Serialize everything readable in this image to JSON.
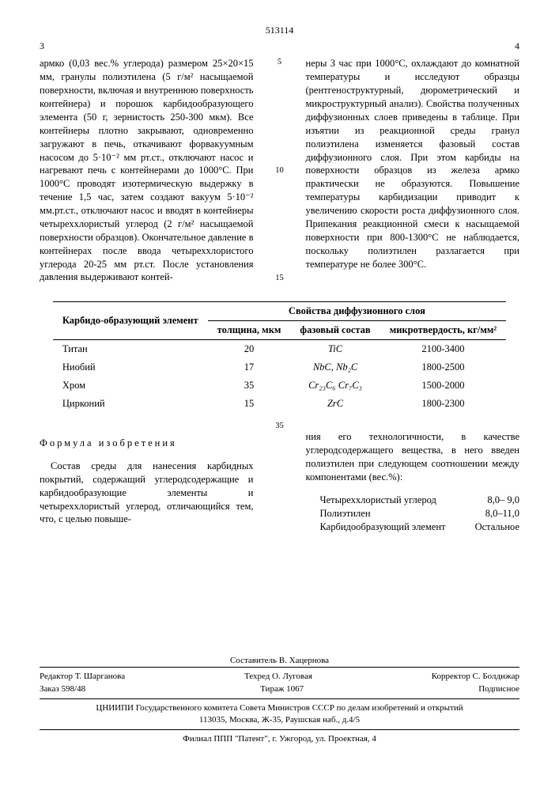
{
  "doc_number": "513114",
  "col_left_num": "3",
  "col_right_num": "4",
  "line_nums": [
    "5",
    "10",
    "15"
  ],
  "left_col": "армко (0,03 вес.% углерода) размером 25×20×15 мм, гранулы полиэтилена (5 г/м² насыщаемой поверхности, включая и внутреннюю поверхность контейнера) и порошок карбидообразующего элемента (50 г, зернистость 250-300 мкм). Все контейнеры плотно закрывают, одновременно загружают в печь, откачивают форвакуумным насосом до 5·10⁻² мм рт.ст., отключают насос и нагревают печь с контейнерами до 1000°С. При 1000°С проводят изотермическую выдержку в течение 1,5 час, затем создают вакуум 5·10⁻² мм.рт.ст., отключают насос и вводят в контейнеры четыреххлористый углерод (2 г/м² насыщаемой поверхности образцов). Окончательное давление в контейнерах после ввода четыреххлористого углерода 20-25 мм рт.ст. После установления давления выдерживают контей-",
  "right_col": "неры 3 час при 1000°С, охлаждают до комнатной температуры и исследуют образцы (рентгеноструктурный, дюрометрический и микроструктурный анализ). Свойства полученных диффузионных слоев приведены в таблице. При изъятии из реакционной среды гранул полиэтилена изменяется фазовый состав диффузионного слоя. При этом карбиды на поверхности образцов из железа армко практически не образуются. Повышение температуры карбидизации приводит к увеличению скорости роста диффузионного слоя. Припекания реакционной смеси к насыщаемой поверхности при 800-1300°С не наблюдается, поскольку полиэтилен разлагается при температуре не более 300°С.",
  "table": {
    "col1_head": "Карбидо-образующий элемент",
    "group_head": "Свойства диффузионного слоя",
    "sub_heads": [
      "толщина, мкм",
      "фазовый состав",
      "микротвердость, кг/мм²"
    ],
    "rows": [
      {
        "el": "Титан",
        "th": "20",
        "ph": "TiC",
        "hv": "2100-3400"
      },
      {
        "el": "Ниобий",
        "th": "17",
        "ph": "NbC, Nb₂C",
        "hv": "1800-2500"
      },
      {
        "el": "Хром",
        "th": "35",
        "ph": "Cr₂₃C₆ Cr₇C₃",
        "hv": "1500-2000"
      },
      {
        "el": "Цирконий",
        "th": "15",
        "ph": "ZrC",
        "hv": "1800-2300"
      }
    ]
  },
  "formula_title": "Формула изобретения",
  "formula_left": "Состав среды для нанесения карбидных покрытий, содержащий углеродсодержащие и карбидообразующие элементы и четыреххлористый углерод, отличающийся тем, что, с целью повыше-",
  "formula_right": "ния его технологичности, в качестве углеродсодержащего вещества, в него введен полиэтилен при следующем соотношении между компонентами (вес.%):",
  "formula_linenum": "35",
  "components": [
    {
      "name": "Четыреххлористый углерод",
      "val": "8,0– 9,0"
    },
    {
      "name": "Полиэтилен",
      "val": "8,0–11,0"
    },
    {
      "name": "Карбидообразующий элемент",
      "val": "Остальное"
    }
  ],
  "footer": {
    "compiler": "Составитель В. Хацернова",
    "editor": "Редактор Т. Шарганова",
    "techred": "Техред О. Луговая",
    "corrector": "Корректор С. Болдижар",
    "order": "Заказ 598/48",
    "tirazh": "Тираж 1067",
    "subscript": "Подписное",
    "org": "ЦНИИПИ Государственного комитета Совета Министров СССР по делам изобретений и открытий",
    "addr": "113035, Москва, Ж-35, Раушская наб., д.4/5",
    "print": "Филиал ППП \"Патент\", г. Ужгород, ул. Проектная, 4"
  }
}
